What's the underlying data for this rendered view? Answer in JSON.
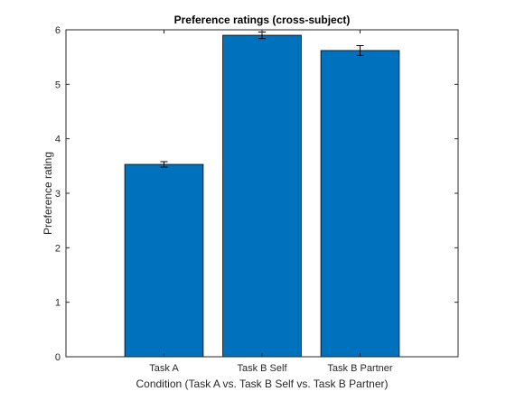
{
  "chart_data": {
    "type": "bar",
    "title": "Preference ratings (cross-subject)",
    "xlabel": "Condition (Task A vs. Task B Self vs. Task B Partner)",
    "ylabel": "Preference rating",
    "categories": [
      "Task A",
      "Task B Self",
      "Task B Partner"
    ],
    "values": [
      3.53,
      5.9,
      5.62
    ],
    "error": [
      0.05,
      0.06,
      0.09
    ],
    "ylim": [
      0,
      6
    ],
    "yticks": [
      "0",
      "1",
      "2",
      "3",
      "4",
      "5",
      "6"
    ],
    "grid": false,
    "legend": "none",
    "colors": {
      "bar": "#0072BD",
      "edge": "#000000",
      "axis": "#262626"
    }
  }
}
